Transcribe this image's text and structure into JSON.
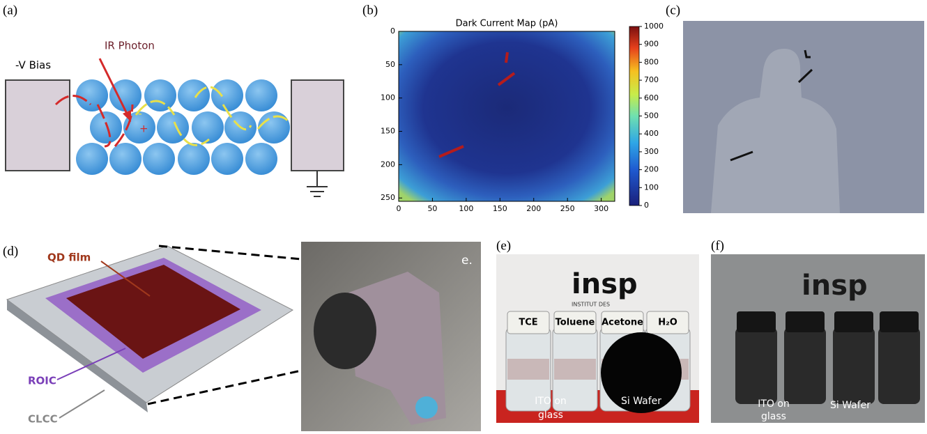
{
  "panel_a": {
    "label": "(a)",
    "bias": "-V Bias",
    "photon": "IR Photon",
    "plus": "+",
    "minus": "-"
  },
  "panel_b": {
    "label": "(b)"
  },
  "chart_data": {
    "type": "heatmap",
    "title": "Dark Current Map (pA)",
    "xlim": [
      0,
      320
    ],
    "ylim": [
      0,
      255
    ],
    "xticks": [
      0,
      50,
      100,
      150,
      200,
      250,
      300
    ],
    "yticks": [
      0,
      50,
      100,
      150,
      200,
      250
    ],
    "clim": [
      0,
      1000
    ],
    "cticks": [
      0,
      100,
      200,
      300,
      400,
      500,
      600,
      700,
      800,
      900,
      1000
    ]
  },
  "panel_c": {
    "label": "(c)"
  },
  "panel_d": {
    "label": "(d)",
    "qd": "QD film",
    "roic": "ROIC",
    "clcc": "CLCC",
    "photo_label": "e."
  },
  "panel_e": {
    "label": "(e)",
    "logo": "insp",
    "institute": "INSTITUT DES",
    "vials": [
      "TCE",
      "Toluene",
      "Acetone",
      "H₂O"
    ],
    "ito": [
      "ITO on",
      "glass"
    ],
    "si": "Si Wafer"
  },
  "panel_f": {
    "label": "(f)",
    "logo": "insp",
    "ito": [
      "ITO on",
      "glass"
    ],
    "si": "Si Wafer"
  }
}
